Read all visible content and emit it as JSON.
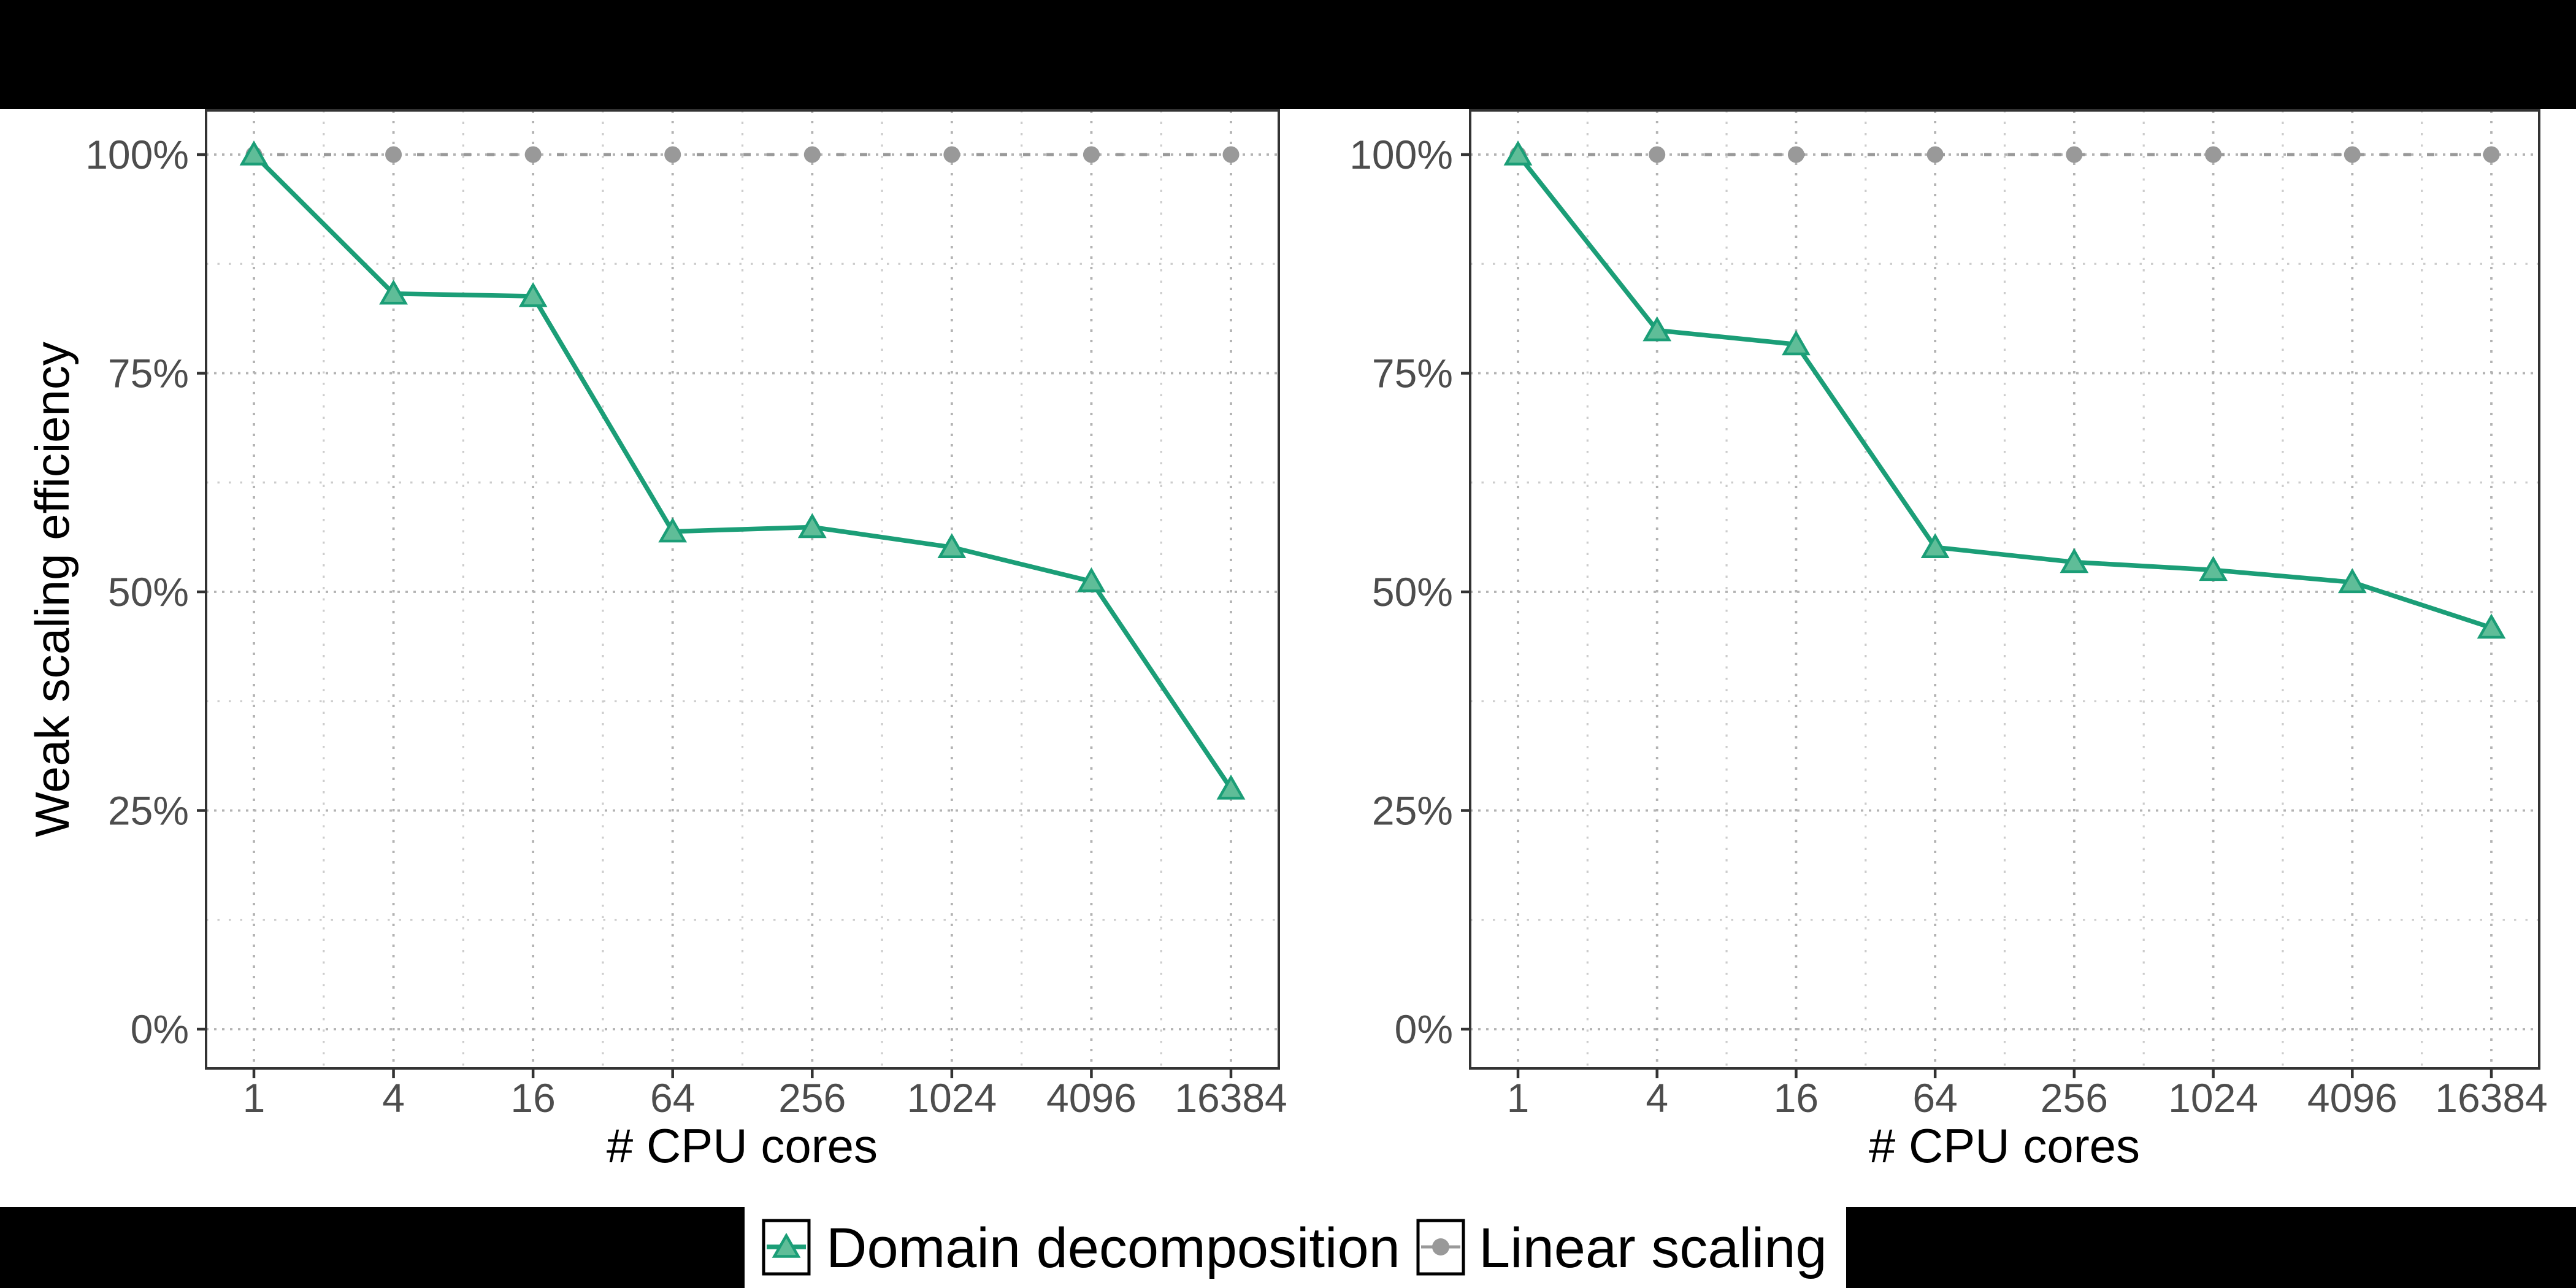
{
  "figure": {
    "background": "#ffffff",
    "banner_color": "#000000",
    "legend_strip_color": "#ffffff"
  },
  "chart_data": {
    "type": "line",
    "x_scale": "log4",
    "xlabel": "# CPU cores",
    "ylabel": "Weak scaling efficiency",
    "categories": [
      1,
      4,
      16,
      64,
      256,
      1024,
      4096,
      16384
    ],
    "xtick_labels": [
      "1",
      "4",
      "16",
      "64",
      "256",
      "1024",
      "4096",
      "16384"
    ],
    "ytick_labels": [
      "100%",
      "75%",
      "50%",
      "25%",
      "0%"
    ],
    "ytick_values": [
      100,
      75,
      50,
      25,
      0
    ],
    "ytick_minor_values": [
      87.5,
      62.5,
      37.5,
      12.5
    ],
    "ylim": [
      -4.5,
      105
    ],
    "grid": "dotted major and minor",
    "legend_position": "bottom",
    "facets": [
      {
        "name": "left",
        "series": [
          {
            "name": "Domain decomposition",
            "values": [
              100,
              84.1,
              83.8,
              56.9,
              57.4,
              55.1,
              51.2,
              27.5
            ]
          },
          {
            "name": "Linear scaling",
            "values": [
              100,
              100,
              100,
              100,
              100,
              100,
              100,
              100
            ]
          }
        ]
      },
      {
        "name": "right",
        "series": [
          {
            "name": "Domain decomposition",
            "values": [
              100,
              79.9,
              78.3,
              55.1,
              53.4,
              52.5,
              51.1,
              45.9
            ]
          },
          {
            "name": "Linear scaling",
            "values": [
              100,
              100,
              100,
              100,
              100,
              100,
              100,
              100
            ]
          }
        ]
      }
    ],
    "series_styles": [
      {
        "name": "Domain decomposition",
        "color": "#1b9e77",
        "marker": "triangle",
        "marker_fill": "#5fbd98",
        "line": "solid"
      },
      {
        "name": "Linear scaling",
        "color": "#999999",
        "marker": "circle",
        "marker_fill": "#999999",
        "line": "dashed"
      }
    ],
    "axis_colors": {
      "tick_label": "#4d4d4d",
      "axis_title": "#000000",
      "panel_border": "#333333",
      "tick_mark": "#333333",
      "grid_major": "#b3b3b3",
      "grid_minor": "#cccccc"
    }
  }
}
